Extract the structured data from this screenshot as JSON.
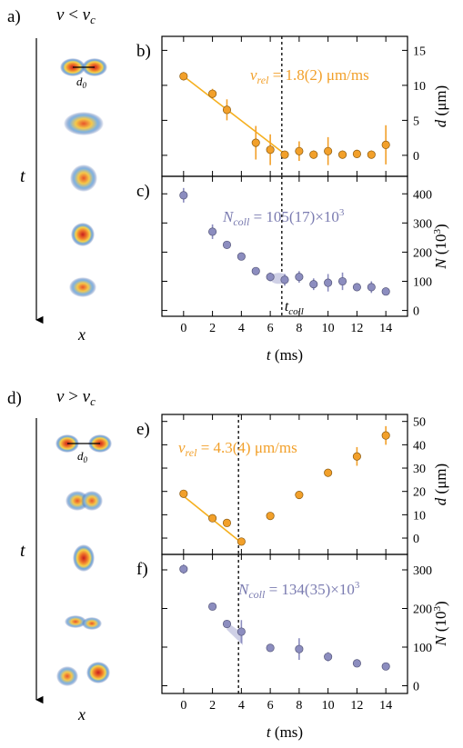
{
  "figure": {
    "colors": {
      "orange": "#f2a02a",
      "orange_line": "#f5b020",
      "purple": "#8c8dbf",
      "purple_text": "#7a7bb0",
      "purple_shade": "#cfd0e6"
    },
    "parts": [
      {
        "series_a_label": "a)",
        "condition_v": "v",
        "condition_op": " < ",
        "condition_vc": "v",
        "condition_c": "c",
        "time_axis": "t",
        "space_axis": "x",
        "distance_label": "d",
        "distance_sub": "0"
      },
      {
        "series_a_label": "d)",
        "condition_v": "v",
        "condition_op": " > ",
        "condition_vc": "v",
        "condition_c": "c",
        "time_axis": "t",
        "space_axis": "x",
        "distance_label": "d",
        "distance_sub": "0"
      }
    ]
  },
  "chart_data": [
    {
      "type": "scatter",
      "panel_label": "b)",
      "x": [
        0,
        2,
        3,
        5,
        6,
        7,
        8,
        9,
        10,
        11,
        12,
        13,
        14
      ],
      "series": [
        {
          "values": [
            11.3,
            8.8,
            6.5,
            1.8,
            0.8,
            0.1,
            0.6,
            0.1,
            0.6,
            0.1,
            0.2,
            0.1,
            1.5
          ],
          "errors": [
            0.6,
            0.7,
            1.5,
            2.4,
            2.2,
            0.5,
            1.4,
            0.6,
            2.0,
            0.6,
            0.6,
            0.6,
            2.8
          ]
        }
      ],
      "fit_line": {
        "x": [
          0,
          6.8
        ],
        "y": [
          11.3,
          0.5
        ]
      },
      "annotation": {
        "prefix": "v",
        "sub": "rel",
        "text": "= 1.8(2) μm/ms"
      },
      "xlim": [
        -1.5,
        15.5
      ],
      "ylim": [
        -3,
        17
      ],
      "yticks": [
        0,
        5,
        10,
        15
      ],
      "ylabel": {
        "var": "d",
        "unit": " (μm)"
      },
      "marker_line": 6.8
    },
    {
      "type": "scatter",
      "panel_label": "c)",
      "x": [
        0,
        2,
        3,
        4,
        5,
        6,
        7,
        8,
        9,
        10,
        11,
        12,
        13,
        14
      ],
      "series": [
        {
          "values": [
            395,
            270,
            225,
            185,
            135,
            115,
            105,
            115,
            90,
            95,
            100,
            80,
            80,
            65
          ],
          "errors": [
            25,
            25,
            10,
            10,
            10,
            15,
            20,
            20,
            20,
            30,
            30,
            10,
            20,
            10
          ]
        }
      ],
      "annotation": {
        "prefix": "N",
        "sub": "coll",
        "text": "= 105(17)×10",
        "sup": "3"
      },
      "marker_label": {
        "prefix": "t",
        "sub": "coll"
      },
      "xlim": [
        -1.5,
        15.5
      ],
      "ylim": [
        -20,
        460
      ],
      "yticks": [
        0,
        100,
        200,
        300,
        400
      ],
      "ylabel": {
        "var": "N",
        "unit": " (10",
        "sup": "3",
        "close": ")"
      },
      "xticks": [
        0,
        2,
        4,
        6,
        8,
        10,
        12,
        14
      ],
      "xlabel": {
        "var": "t",
        "unit": " (ms)"
      },
      "marker_line": 6.8
    },
    {
      "type": "scatter",
      "panel_label": "e)",
      "x": [
        0,
        2,
        3,
        4,
        6,
        8,
        10,
        12,
        14
      ],
      "series": [
        {
          "values": [
            19,
            8.5,
            6.5,
            -1.5,
            9.5,
            18.5,
            28,
            35,
            44
          ],
          "errors": [
            1,
            1,
            1,
            1,
            1,
            1,
            1,
            4,
            4
          ]
        }
      ],
      "fit_line": {
        "x": [
          0,
          4
        ],
        "y": [
          18,
          -2
        ]
      },
      "annotation": {
        "prefix": "v",
        "sub": "rel",
        "text": "= 4.3(4) μm/ms"
      },
      "xlim": [
        -1.5,
        15.5
      ],
      "ylim": [
        -7,
        53
      ],
      "yticks": [
        0,
        10,
        20,
        30,
        40,
        50
      ],
      "ylabel": {
        "var": "d",
        "unit": " (μm)"
      },
      "marker_line": 3.8
    },
    {
      "type": "scatter",
      "panel_label": "f)",
      "x": [
        0,
        2,
        3,
        4,
        6,
        8,
        10,
        12,
        14
      ],
      "series": [
        {
          "values": [
            302,
            205,
            160,
            140,
            98,
            95,
            75,
            58,
            50
          ],
          "errors": [
            12,
            8,
            10,
            30,
            10,
            28,
            12,
            8,
            8
          ]
        }
      ],
      "annotation": {
        "prefix": "N",
        "sub": "coll",
        "text": "= 134(35)×10",
        "sup": "3"
      },
      "xlim": [
        -1.5,
        15.5
      ],
      "ylim": [
        -20,
        340
      ],
      "yticks": [
        0,
        100,
        200,
        300
      ],
      "ylabel": {
        "var": "N",
        "unit": " (10",
        "sup": "3",
        "close": ")"
      },
      "xticks": [
        0,
        2,
        4,
        6,
        8,
        10,
        12,
        14
      ],
      "xlabel": {
        "var": "t",
        "unit": " (ms)"
      },
      "marker_line": 3.8
    }
  ]
}
